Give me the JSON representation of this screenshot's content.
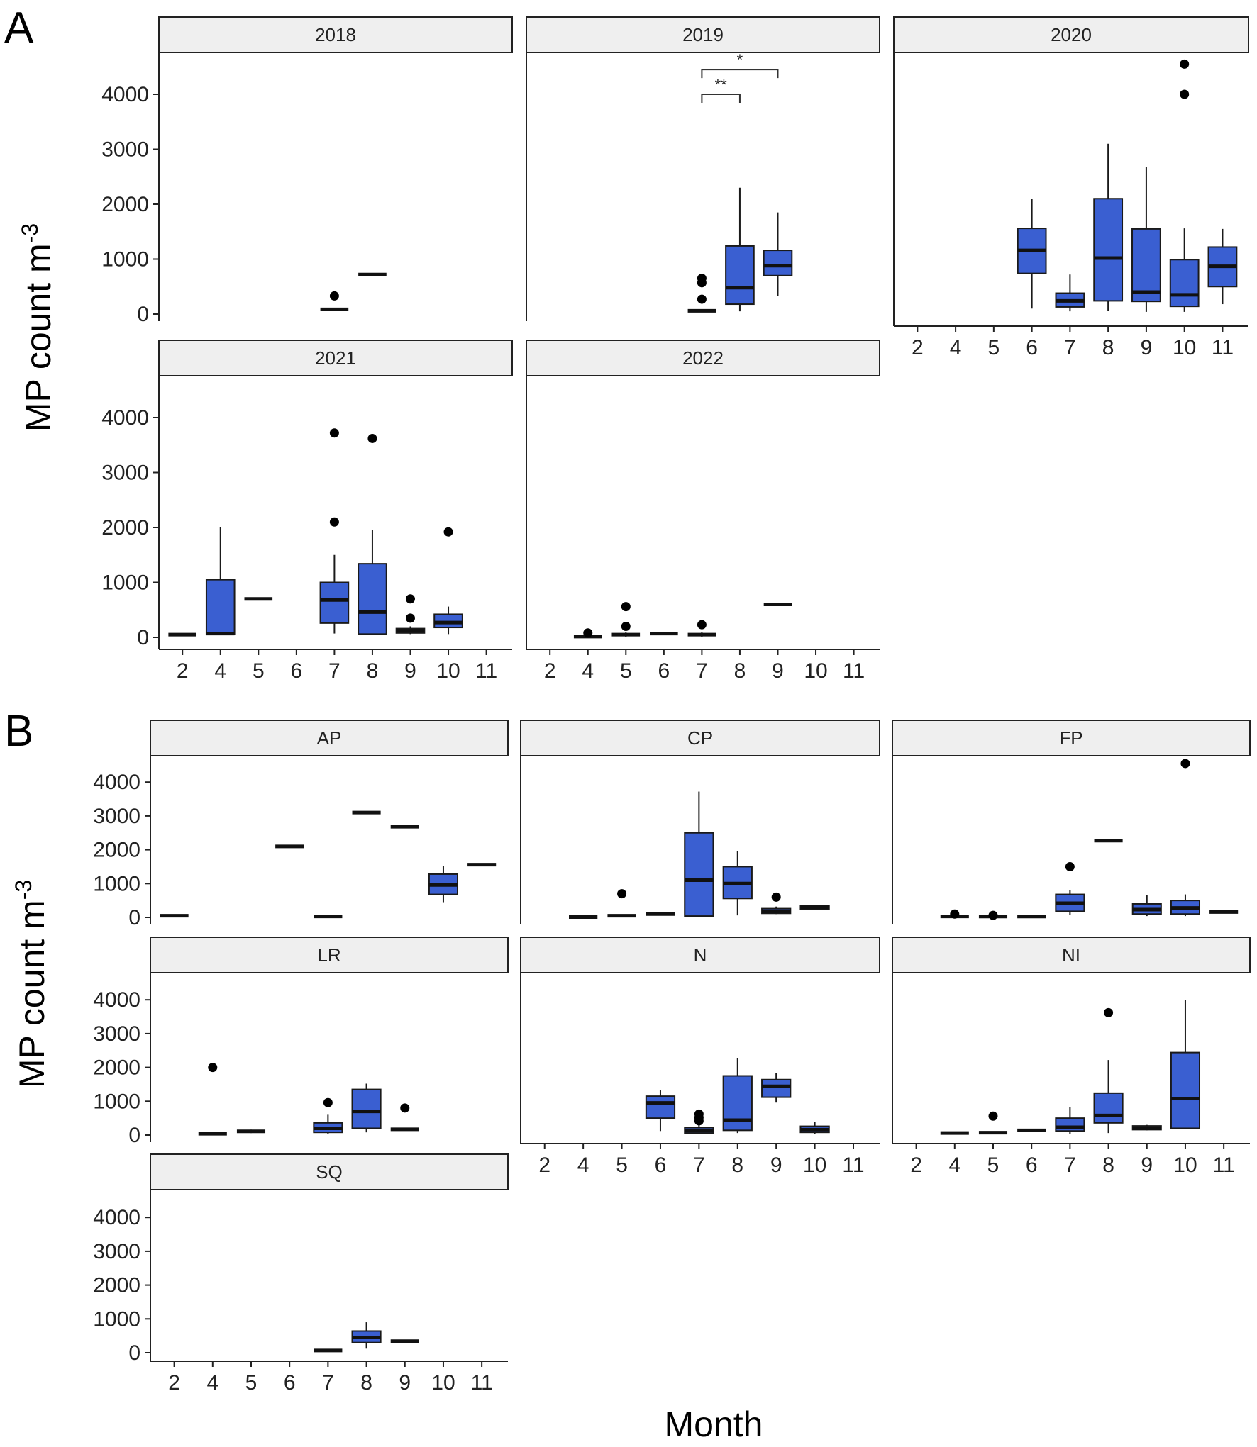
{
  "figure": {
    "ylabel_base": "MP count m",
    "ylabel_sup": "-3",
    "xlabel": "Month"
  },
  "chart_data": [
    {
      "type": "box",
      "panel_label": "A",
      "facet_by": "year",
      "x_categories": [
        "2",
        "4",
        "5",
        "6",
        "7",
        "8",
        "9",
        "10",
        "11"
      ],
      "y_ticks": [
        0,
        1000,
        2000,
        3000,
        4000
      ],
      "ylim": [
        -150,
        4750
      ],
      "facets": [
        {
          "name": "2018",
          "boxes": [
            {
              "x": "7",
              "lo": 70,
              "q1": 70,
              "med": 85,
              "q3": 100,
              "hi": 100,
              "out": [
                330
              ]
            },
            {
              "x": "8",
              "lo": 720,
              "q1": 720,
              "med": 720,
              "q3": 720,
              "hi": 720,
              "out": []
            }
          ],
          "signif": []
        },
        {
          "name": "2019",
          "boxes": [
            {
              "x": "7",
              "lo": 40,
              "q1": 50,
              "med": 60,
              "q3": 80,
              "hi": 90,
              "out": [
                270,
                570,
                650
              ]
            },
            {
              "x": "8",
              "lo": 50,
              "q1": 180,
              "med": 480,
              "q3": 1240,
              "hi": 2300,
              "out": []
            },
            {
              "x": "9",
              "lo": 330,
              "q1": 700,
              "med": 880,
              "q3": 1160,
              "hi": 1850,
              "out": []
            }
          ],
          "signif": [
            {
              "from": "7",
              "to": "9",
              "y": 4450,
              "label": "*"
            },
            {
              "from": "7",
              "to": "8",
              "y": 4000,
              "label": "**"
            }
          ]
        },
        {
          "name": "2020",
          "boxes": [
            {
              "x": "6",
              "lo": 100,
              "q1": 740,
              "med": 1160,
              "q3": 1560,
              "hi": 2100,
              "out": []
            },
            {
              "x": "7",
              "lo": 50,
              "q1": 130,
              "med": 240,
              "q3": 380,
              "hi": 720,
              "out": []
            },
            {
              "x": "8",
              "lo": 60,
              "q1": 240,
              "med": 1020,
              "q3": 2100,
              "hi": 3100,
              "out": []
            },
            {
              "x": "9",
              "lo": 40,
              "q1": 230,
              "med": 400,
              "q3": 1550,
              "hi": 2680,
              "out": []
            },
            {
              "x": "10",
              "lo": 40,
              "q1": 140,
              "med": 350,
              "q3": 990,
              "hi": 1560,
              "out": [
                4000,
                4550
              ]
            },
            {
              "x": "11",
              "lo": 180,
              "q1": 500,
              "med": 870,
              "q3": 1220,
              "hi": 1550,
              "out": []
            }
          ],
          "signif": []
        },
        {
          "name": "2021",
          "boxes": [
            {
              "x": "2",
              "lo": 50,
              "q1": 50,
              "med": 50,
              "q3": 50,
              "hi": 50,
              "out": []
            },
            {
              "x": "4",
              "lo": 60,
              "q1": 60,
              "med": 70,
              "q3": 1050,
              "hi": 2000,
              "out": []
            },
            {
              "x": "5",
              "lo": 700,
              "q1": 700,
              "med": 700,
              "q3": 700,
              "hi": 700,
              "out": []
            },
            {
              "x": "7",
              "lo": 70,
              "q1": 260,
              "med": 680,
              "q3": 1000,
              "hi": 1500,
              "out": [
                2100,
                3720
              ]
            },
            {
              "x": "8",
              "lo": 50,
              "q1": 60,
              "med": 460,
              "q3": 1340,
              "hi": 1950,
              "out": [
                3620
              ]
            },
            {
              "x": "9",
              "lo": 60,
              "q1": 80,
              "med": 120,
              "q3": 160,
              "hi": 200,
              "out": [
                350,
                700
              ]
            },
            {
              "x": "10",
              "lo": 60,
              "q1": 180,
              "med": 270,
              "q3": 420,
              "hi": 560,
              "out": [
                1920
              ]
            }
          ],
          "signif": []
        },
        {
          "name": "2022",
          "boxes": [
            {
              "x": "4",
              "lo": 5,
              "q1": 10,
              "med": 15,
              "q3": 25,
              "hi": 30,
              "out": [
                80
              ]
            },
            {
              "x": "5",
              "lo": 10,
              "q1": 30,
              "med": 50,
              "q3": 80,
              "hi": 100,
              "out": [
                200,
                560
              ]
            },
            {
              "x": "6",
              "lo": 60,
              "q1": 60,
              "med": 70,
              "q3": 85,
              "hi": 85,
              "out": []
            },
            {
              "x": "7",
              "lo": 10,
              "q1": 30,
              "med": 50,
              "q3": 80,
              "hi": 100,
              "out": [
                230
              ]
            },
            {
              "x": "9",
              "lo": 600,
              "q1": 600,
              "med": 600,
              "q3": 600,
              "hi": 600,
              "out": []
            }
          ],
          "signif": []
        }
      ]
    },
    {
      "type": "box",
      "panel_label": "B",
      "facet_by": "site",
      "x_categories": [
        "2",
        "4",
        "5",
        "6",
        "7",
        "8",
        "9",
        "10",
        "11"
      ],
      "y_ticks": [
        0,
        1000,
        2000,
        3000,
        4000
      ],
      "ylim": [
        -150,
        4750
      ],
      "facets": [
        {
          "name": "AP",
          "boxes": [
            {
              "x": "2",
              "lo": 50,
              "q1": 50,
              "med": 50,
              "q3": 50,
              "hi": 50,
              "out": []
            },
            {
              "x": "6",
              "lo": 2100,
              "q1": 2100,
              "med": 2100,
              "q3": 2100,
              "hi": 2100,
              "out": []
            },
            {
              "x": "7",
              "lo": 30,
              "q1": 30,
              "med": 30,
              "q3": 30,
              "hi": 30,
              "out": []
            },
            {
              "x": "8",
              "lo": 3100,
              "q1": 3100,
              "med": 3100,
              "q3": 3100,
              "hi": 3100,
              "out": []
            },
            {
              "x": "9",
              "lo": 2680,
              "q1": 2680,
              "med": 2680,
              "q3": 2680,
              "hi": 2680,
              "out": []
            },
            {
              "x": "10",
              "lo": 450,
              "q1": 680,
              "med": 960,
              "q3": 1280,
              "hi": 1520,
              "out": []
            },
            {
              "x": "11",
              "lo": 1560,
              "q1": 1560,
              "med": 1560,
              "q3": 1560,
              "hi": 1560,
              "out": []
            }
          ]
        },
        {
          "name": "CP",
          "boxes": [
            {
              "x": "4",
              "lo": 10,
              "q1": 10,
              "med": 10,
              "q3": 10,
              "hi": 10,
              "out": []
            },
            {
              "x": "5",
              "lo": 50,
              "q1": 50,
              "med": 50,
              "q3": 50,
              "hi": 50,
              "out": [
                700
              ]
            },
            {
              "x": "6",
              "lo": 100,
              "q1": 100,
              "med": 100,
              "q3": 100,
              "hi": 100,
              "out": []
            },
            {
              "x": "7",
              "lo": 40,
              "q1": 40,
              "med": 1100,
              "q3": 2500,
              "hi": 3720,
              "out": []
            },
            {
              "x": "8",
              "lo": 60,
              "q1": 560,
              "med": 1000,
              "q3": 1500,
              "hi": 1950,
              "out": []
            },
            {
              "x": "9",
              "lo": 100,
              "q1": 120,
              "med": 180,
              "q3": 260,
              "hi": 320,
              "out": [
                600
              ]
            },
            {
              "x": "10",
              "lo": 220,
              "q1": 250,
              "med": 300,
              "q3": 340,
              "hi": 350,
              "out": []
            }
          ]
        },
        {
          "name": "FP",
          "boxes": [
            {
              "x": "4",
              "lo": 10,
              "q1": 20,
              "med": 30,
              "q3": 40,
              "hi": 60,
              "out": [
                100
              ]
            },
            {
              "x": "5",
              "lo": 10,
              "q1": 15,
              "med": 25,
              "q3": 40,
              "hi": 50,
              "out": [
                60
              ]
            },
            {
              "x": "6",
              "lo": 20,
              "q1": 20,
              "med": 25,
              "q3": 30,
              "hi": 30,
              "out": []
            },
            {
              "x": "7",
              "lo": 80,
              "q1": 180,
              "med": 420,
              "q3": 680,
              "hi": 800,
              "out": [
                1500
              ]
            },
            {
              "x": "8",
              "lo": 2270,
              "q1": 2270,
              "med": 2270,
              "q3": 2270,
              "hi": 2270,
              "out": []
            },
            {
              "x": "9",
              "lo": 40,
              "q1": 100,
              "med": 230,
              "q3": 400,
              "hi": 650,
              "out": []
            },
            {
              "x": "10",
              "lo": 40,
              "q1": 100,
              "med": 280,
              "q3": 500,
              "hi": 680,
              "out": [
                4550
              ]
            },
            {
              "x": "11",
              "lo": 150,
              "q1": 150,
              "med": 160,
              "q3": 170,
              "hi": 170,
              "out": []
            }
          ]
        },
        {
          "name": "LR",
          "boxes": [
            {
              "x": "4",
              "lo": 30,
              "q1": 30,
              "med": 40,
              "q3": 50,
              "hi": 50,
              "out": [
                2000
              ]
            },
            {
              "x": "5",
              "lo": 60,
              "q1": 80,
              "med": 110,
              "q3": 140,
              "hi": 160,
              "out": []
            },
            {
              "x": "7",
              "lo": 40,
              "q1": 80,
              "med": 200,
              "q3": 360,
              "hi": 600,
              "out": [
                960
              ]
            },
            {
              "x": "8",
              "lo": 80,
              "q1": 200,
              "med": 700,
              "q3": 1350,
              "hi": 1520,
              "out": []
            },
            {
              "x": "9",
              "lo": 160,
              "q1": 160,
              "med": 170,
              "q3": 180,
              "hi": 180,
              "out": [
                800
              ]
            }
          ]
        },
        {
          "name": "N",
          "boxes": [
            {
              "x": "6",
              "lo": 120,
              "q1": 500,
              "med": 950,
              "q3": 1150,
              "hi": 1320,
              "out": []
            },
            {
              "x": "7",
              "lo": 30,
              "q1": 60,
              "med": 130,
              "q3": 220,
              "hi": 300,
              "out": [
                420,
                520,
                620
              ]
            },
            {
              "x": "8",
              "lo": 60,
              "q1": 140,
              "med": 440,
              "q3": 1750,
              "hi": 2280,
              "out": []
            },
            {
              "x": "9",
              "lo": 960,
              "q1": 1120,
              "med": 1440,
              "q3": 1640,
              "hi": 1840,
              "out": []
            },
            {
              "x": "10",
              "lo": 40,
              "q1": 80,
              "med": 160,
              "q3": 260,
              "hi": 380,
              "out": []
            }
          ]
        },
        {
          "name": "NI",
          "boxes": [
            {
              "x": "4",
              "lo": 50,
              "q1": 50,
              "med": 60,
              "q3": 70,
              "hi": 70,
              "out": []
            },
            {
              "x": "5",
              "lo": 30,
              "q1": 40,
              "med": 70,
              "q3": 100,
              "hi": 100,
              "out": [
                560
              ]
            },
            {
              "x": "6",
              "lo": 130,
              "q1": 130,
              "med": 140,
              "q3": 150,
              "hi": 150,
              "out": []
            },
            {
              "x": "7",
              "lo": 40,
              "q1": 120,
              "med": 230,
              "q3": 500,
              "hi": 820,
              "out": []
            },
            {
              "x": "8",
              "lo": 60,
              "q1": 360,
              "med": 580,
              "q3": 1240,
              "hi": 2220,
              "out": [
                3620
              ]
            },
            {
              "x": "9",
              "lo": 140,
              "q1": 160,
              "med": 200,
              "q3": 270,
              "hi": 300,
              "out": []
            },
            {
              "x": "10",
              "lo": 200,
              "q1": 200,
              "med": 1080,
              "q3": 2440,
              "hi": 4000,
              "out": []
            }
          ]
        },
        {
          "name": "SQ",
          "boxes": [
            {
              "x": "7",
              "lo": 60,
              "q1": 60,
              "med": 65,
              "q3": 70,
              "hi": 70,
              "out": []
            },
            {
              "x": "8",
              "lo": 120,
              "q1": 300,
              "med": 450,
              "q3": 640,
              "hi": 900,
              "out": []
            },
            {
              "x": "9",
              "lo": 330,
              "q1": 330,
              "med": 340,
              "q3": 350,
              "hi": 350,
              "out": []
            }
          ]
        }
      ]
    }
  ]
}
